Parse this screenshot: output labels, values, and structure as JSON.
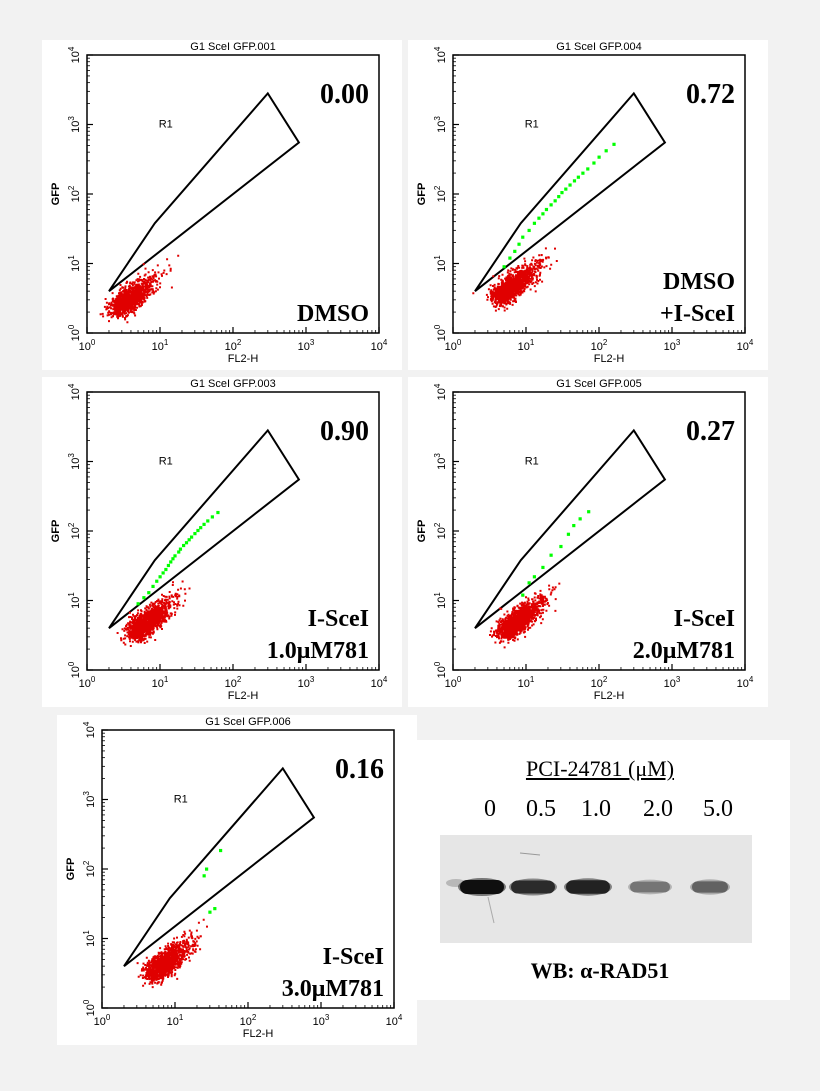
{
  "chart_data": [
    {
      "type": "scatter",
      "title": "G1 SceI GFP.001",
      "xlabel": "FL2-H",
      "ylabel": "GFP",
      "axis_scale": "log",
      "xlim": [
        1,
        10000
      ],
      "ylim": [
        1,
        10000
      ],
      "tick_labels": [
        "10",
        "10",
        "10",
        "10",
        "10"
      ],
      "tick_exponents": [
        "0",
        "1",
        "2",
        "3",
        "4"
      ],
      "gate_label": "R1",
      "gate_percent": "0.00",
      "condition": [
        "DMSO"
      ],
      "gated_events": [],
      "series": [
        {
          "name": "ungated",
          "color": "#e00000"
        },
        {
          "name": "gated",
          "color": "#00ff00"
        }
      ]
    },
    {
      "type": "scatter",
      "title": "G1 SceI GFP.004",
      "xlabel": "FL2-H",
      "ylabel": "GFP",
      "axis_scale": "log",
      "xlim": [
        1,
        10000
      ],
      "ylim": [
        1,
        10000
      ],
      "tick_labels": [
        "10",
        "10",
        "10",
        "10",
        "10"
      ],
      "tick_exponents": [
        "0",
        "1",
        "2",
        "3",
        "4"
      ],
      "gate_label": "R1",
      "gate_percent": "0.72",
      "condition": [
        "DMSO",
        "+I-SceI"
      ],
      "gated_events": [
        [
          5,
          9
        ],
        [
          6,
          12
        ],
        [
          7,
          15
        ],
        [
          8,
          19
        ],
        [
          9,
          24
        ],
        [
          11,
          30
        ],
        [
          13,
          38
        ],
        [
          15,
          45
        ],
        [
          17,
          52
        ],
        [
          19,
          60
        ],
        [
          22,
          70
        ],
        [
          25,
          80
        ],
        [
          28,
          92
        ],
        [
          31,
          105
        ],
        [
          35,
          118
        ],
        [
          40,
          135
        ],
        [
          46,
          155
        ],
        [
          52,
          175
        ],
        [
          60,
          200
        ],
        [
          70,
          230
        ],
        [
          85,
          280
        ],
        [
          100,
          340
        ],
        [
          125,
          420
        ],
        [
          160,
          520
        ]
      ],
      "series": [
        {
          "name": "ungated",
          "color": "#e00000"
        },
        {
          "name": "gated",
          "color": "#00ff00"
        }
      ]
    },
    {
      "type": "scatter",
      "title": "G1 SceI GFP.003",
      "xlabel": "FL2-H",
      "ylabel": "GFP",
      "axis_scale": "log",
      "xlim": [
        1,
        10000
      ],
      "ylim": [
        1,
        10000
      ],
      "tick_labels": [
        "10",
        "10",
        "10",
        "10",
        "10"
      ],
      "tick_exponents": [
        "0",
        "1",
        "2",
        "3",
        "4"
      ],
      "gate_label": "R1",
      "gate_percent": "0.90",
      "condition": [
        "I-SceI",
        "1.0μM781"
      ],
      "gated_events": [
        [
          5,
          9
        ],
        [
          6,
          11
        ],
        [
          7,
          13
        ],
        [
          8,
          16
        ],
        [
          9,
          19
        ],
        [
          10,
          22
        ],
        [
          11,
          25
        ],
        [
          12,
          28
        ],
        [
          13,
          32
        ],
        [
          14,
          36
        ],
        [
          15,
          40
        ],
        [
          16,
          44
        ],
        [
          18,
          50
        ],
        [
          19,
          55
        ],
        [
          21,
          62
        ],
        [
          23,
          68
        ],
        [
          25,
          75
        ],
        [
          27,
          82
        ],
        [
          30,
          92
        ],
        [
          33,
          102
        ],
        [
          36,
          112
        ],
        [
          40,
          125
        ],
        [
          45,
          140
        ],
        [
          52,
          160
        ],
        [
          62,
          185
        ]
      ],
      "series": [
        {
          "name": "ungated",
          "color": "#e00000"
        },
        {
          "name": "gated",
          "color": "#00ff00"
        }
      ]
    },
    {
      "type": "scatter",
      "title": "G1 SceI GFP.005",
      "xlabel": "FL2-H",
      "ylabel": "GFP",
      "axis_scale": "log",
      "xlim": [
        1,
        10000
      ],
      "ylim": [
        1,
        10000
      ],
      "tick_labels": [
        "10",
        "10",
        "10",
        "10",
        "10"
      ],
      "tick_exponents": [
        "0",
        "1",
        "2",
        "3",
        "4"
      ],
      "gate_label": "R1",
      "gate_percent": "0.27",
      "condition": [
        "I-SceI",
        "2.0μM781"
      ],
      "gated_events": [
        [
          9,
          12
        ],
        [
          11,
          18
        ],
        [
          13,
          22
        ],
        [
          17,
          30
        ],
        [
          22,
          45
        ],
        [
          30,
          60
        ],
        [
          38,
          90
        ],
        [
          45,
          120
        ],
        [
          55,
          150
        ],
        [
          72,
          190
        ]
      ],
      "series": [
        {
          "name": "ungated",
          "color": "#e00000"
        },
        {
          "name": "gated",
          "color": "#00ff00"
        }
      ]
    },
    {
      "type": "scatter",
      "title": "G1 SceI GFP.006",
      "xlabel": "FL2-H",
      "ylabel": "GFP",
      "axis_scale": "log",
      "xlim": [
        1,
        10000
      ],
      "ylim": [
        1,
        10000
      ],
      "tick_labels": [
        "10",
        "10",
        "10",
        "10",
        "10"
      ],
      "tick_exponents": [
        "0",
        "1",
        "2",
        "3",
        "4"
      ],
      "gate_label": "R1",
      "gate_percent": "0.16",
      "condition": [
        "I-SceI",
        "3.0μM781"
      ],
      "gated_events": [
        [
          25,
          80
        ],
        [
          27,
          100
        ],
        [
          42,
          185
        ],
        [
          30,
          24
        ],
        [
          35,
          27
        ]
      ],
      "series": [
        {
          "name": "ungated",
          "color": "#e00000"
        },
        {
          "name": "gated",
          "color": "#00ff00"
        }
      ]
    }
  ],
  "western_blot": {
    "title": "PCI-24781 (μM)",
    "concentrations": [
      "0",
      "0.5",
      "1.0",
      "2.0",
      "5.0"
    ],
    "band_intensity": [
      1.0,
      0.85,
      0.9,
      0.45,
      0.55
    ],
    "caption": "WB: α-RAD51"
  }
}
